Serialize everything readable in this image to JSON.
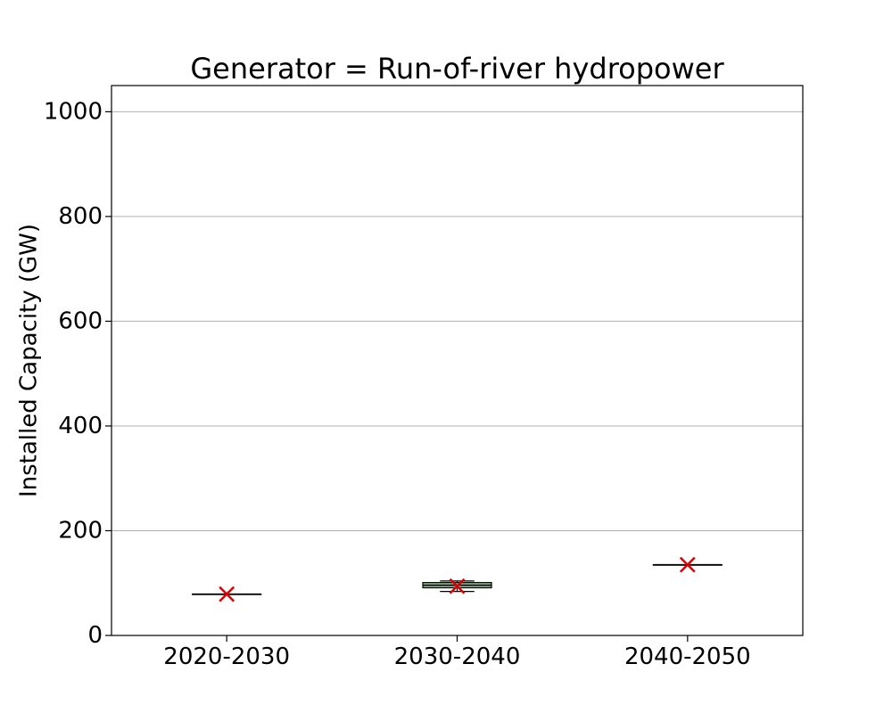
{
  "chart_data": {
    "type": "box",
    "title": "Generator = Run-of-river hydropower",
    "xlabel": "",
    "ylabel": "Installed Capacity (GW)",
    "ylim": [
      0,
      1050
    ],
    "yticks": [
      0,
      200,
      400,
      600,
      800,
      1000
    ],
    "grid": "y",
    "categories": [
      "2020-2030",
      "2030-2040",
      "2040-2050"
    ],
    "boxes": [
      {
        "category": "2020-2030",
        "whisker_low": 79,
        "q1": 79,
        "median": 79,
        "q3": 79,
        "whisker_high": 79,
        "mean": 79
      },
      {
        "category": "2030-2040",
        "whisker_low": 84,
        "q1": 91,
        "median": 96,
        "q3": 101,
        "whisker_high": 104,
        "mean": 94
      },
      {
        "category": "2040-2050",
        "whisker_low": 135,
        "q1": 135,
        "median": 135,
        "q3": 135,
        "whisker_high": 135,
        "mean": 135
      }
    ],
    "colors": {
      "box_fill": "#8fbc8f",
      "box_edge": "#000000",
      "median": "#000000",
      "mean_marker": "#dd0000",
      "grid": "#b0b0b0"
    }
  }
}
